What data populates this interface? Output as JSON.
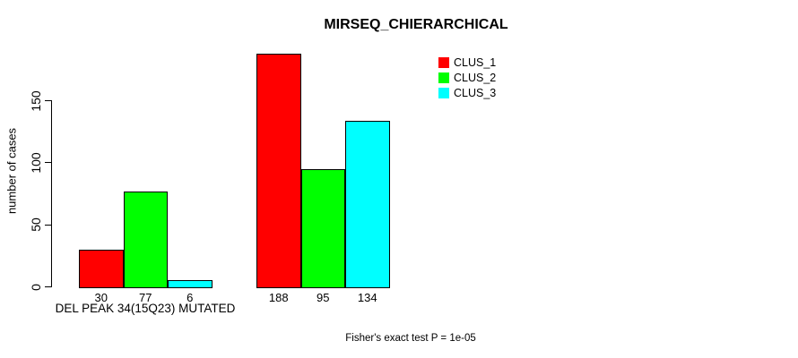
{
  "chart_data": {
    "type": "bar",
    "title": "MIRSEQ_CHIERARCHICAL",
    "ylabel": "number of cases",
    "ylim": [
      0,
      150
    ],
    "yticks": [
      0,
      50,
      100,
      150
    ],
    "grid": false,
    "legend_position": "top-right",
    "categories": [
      "DEL PEAK 34(15Q23) MUTATED",
      ""
    ],
    "series": [
      {
        "name": "CLUS_1",
        "color": "#ff0000",
        "values": [
          30,
          188
        ]
      },
      {
        "name": "CLUS_2",
        "color": "#00ff00",
        "values": [
          77,
          95
        ]
      },
      {
        "name": "CLUS_3",
        "color": "#00ffff",
        "values": [
          6,
          134
        ]
      }
    ],
    "bar_value_labels": [
      [
        30,
        77,
        6
      ],
      [
        188,
        95,
        134
      ]
    ],
    "annotation": "Fisher's exact test P = 1e-05"
  },
  "colors": {
    "background": "#ffffff",
    "axis": "#000000",
    "text": "#000000"
  }
}
